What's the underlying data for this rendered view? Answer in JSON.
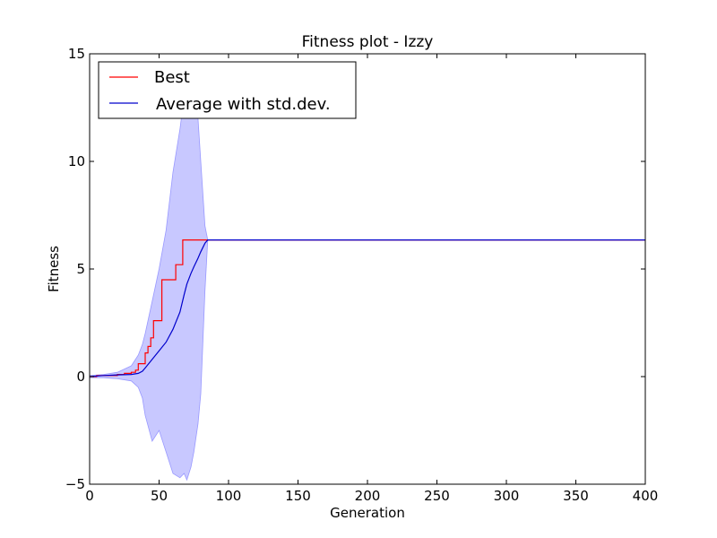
{
  "chart_data": {
    "type": "line",
    "title": "Fitness plot - Izzy",
    "xlabel": "Generation",
    "ylabel": "Fitness",
    "xlim": [
      0,
      400
    ],
    "ylim": [
      -5,
      15
    ],
    "xticks": [
      0,
      50,
      100,
      150,
      200,
      250,
      300,
      350,
      400
    ],
    "yticks": [
      -5,
      0,
      5,
      10,
      15
    ],
    "grid": false,
    "legend_position": "top-left",
    "colors": {
      "best": "#ff0000",
      "average": "#0000cc",
      "std_band": "#c8c8ff",
      "std_band_edge": "#9999ff"
    },
    "series": [
      {
        "name": "Best",
        "x": [
          0,
          5,
          20,
          25,
          30,
          33,
          35,
          40,
          42,
          44,
          46,
          50,
          52,
          55,
          60,
          62,
          65,
          67,
          70,
          85,
          400
        ],
        "y": [
          0.0,
          0.05,
          0.1,
          0.15,
          0.2,
          0.3,
          0.6,
          1.1,
          1.4,
          1.8,
          2.6,
          2.6,
          4.5,
          4.5,
          4.5,
          5.2,
          5.2,
          6.35,
          6.35,
          6.35,
          6.35
        ],
        "step": true
      },
      {
        "name": "Average with std.dev.",
        "x": [
          0,
          10,
          20,
          30,
          35,
          38,
          40,
          45,
          50,
          55,
          60,
          65,
          68,
          70,
          73,
          75,
          78,
          80,
          83,
          85,
          400
        ],
        "y": [
          0.0,
          0.05,
          0.08,
          0.1,
          0.15,
          0.25,
          0.4,
          0.8,
          1.2,
          1.6,
          2.2,
          3.0,
          3.8,
          4.3,
          4.8,
          5.1,
          5.5,
          5.8,
          6.2,
          6.35,
          6.35
        ],
        "std_upper": [
          0.05,
          0.1,
          0.2,
          0.5,
          1.0,
          1.5,
          2.0,
          3.5,
          5.0,
          6.8,
          9.5,
          11.5,
          13.0,
          14.5,
          14.5,
          13.5,
          12.0,
          10.0,
          7.0,
          6.35,
          6.35
        ],
        "std_lower": [
          -0.05,
          -0.05,
          -0.1,
          -0.2,
          -0.5,
          -1.0,
          -1.8,
          -3.0,
          -2.5,
          -3.5,
          -4.5,
          -4.7,
          -4.5,
          -4.8,
          -4.2,
          -3.5,
          -2.2,
          -0.8,
          4.0,
          6.35,
          6.35
        ]
      }
    ]
  }
}
